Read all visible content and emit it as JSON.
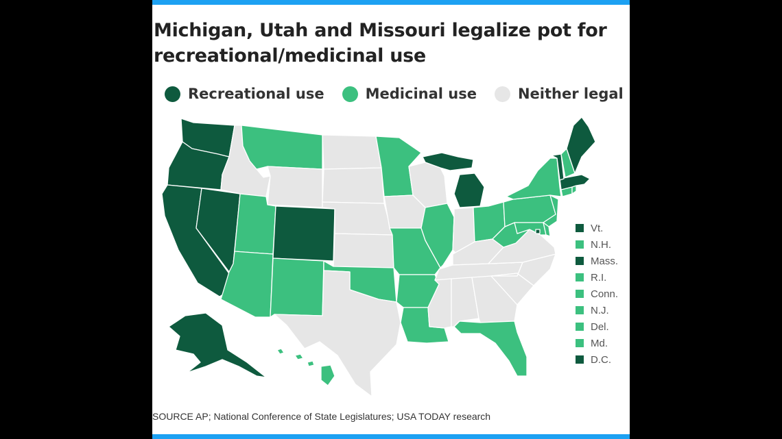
{
  "title": "Michigan, Utah and Missouri legalize pot for recreational/medicinal use",
  "colors": {
    "recreational": "#0e5a3e",
    "medicinal": "#3cc07f",
    "neither": "#e6e6e6",
    "accent_bar": "#1da1f2"
  },
  "legend": [
    {
      "label": "Recreational use",
      "category": "recreational"
    },
    {
      "label": "Medicinal use",
      "category": "medicinal"
    },
    {
      "label": "Neither legal",
      "category": "neither"
    }
  ],
  "small_states": [
    {
      "label": "Vt.",
      "category": "recreational"
    },
    {
      "label": "N.H.",
      "category": "medicinal"
    },
    {
      "label": "Mass.",
      "category": "recreational"
    },
    {
      "label": "R.I.",
      "category": "medicinal"
    },
    {
      "label": "Conn.",
      "category": "medicinal"
    },
    {
      "label": "N.J.",
      "category": "medicinal"
    },
    {
      "label": "Del.",
      "category": "medicinal"
    },
    {
      "label": "Md.",
      "category": "medicinal"
    },
    {
      "label": "D.C.",
      "category": "recreational"
    }
  ],
  "source": "SOURCE AP; National Conference of State Legislatures; USA TODAY research"
}
